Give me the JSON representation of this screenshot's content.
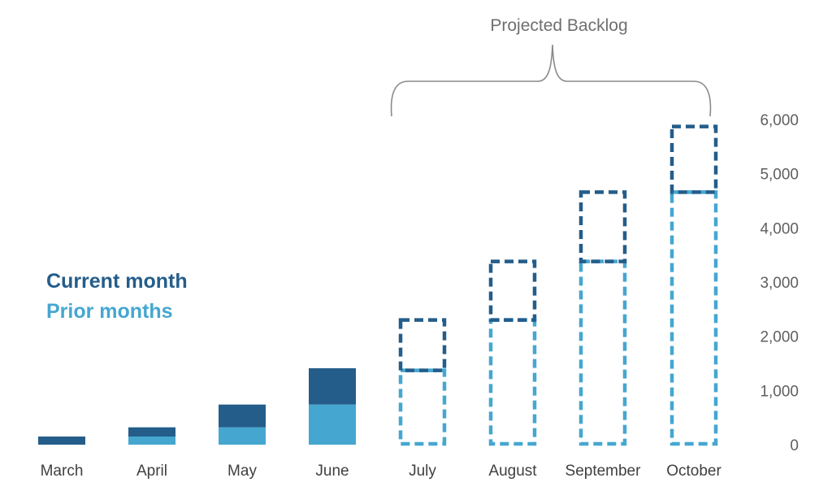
{
  "chart_data": {
    "type": "bar",
    "stacked": true,
    "categories": [
      "March",
      "April",
      "May",
      "June",
      "July",
      "August",
      "September",
      "October"
    ],
    "series": [
      {
        "name": "Prior months",
        "values": [
          0,
          150,
          320,
          740,
          1370,
          2300,
          3380,
          4660
        ]
      },
      {
        "name": "Current month",
        "values": [
          150,
          170,
          420,
          670,
          930,
          1080,
          1280,
          1210
        ]
      }
    ],
    "projected": [
      false,
      false,
      false,
      false,
      true,
      true,
      true,
      true
    ],
    "ylim": [
      0,
      6000
    ],
    "yticks": [
      0,
      1000,
      2000,
      3000,
      4000,
      5000,
      6000
    ],
    "ytick_labels": [
      "0",
      "1,000",
      "2,000",
      "3,000",
      "4,000",
      "5,000",
      "6,000"
    ],
    "y_axis_position": "right",
    "grid": false,
    "legend_placement": "left",
    "annotation": {
      "text": "Projected Backlog",
      "spans": [
        "July",
        "October"
      ]
    },
    "colors": {
      "current": "#245d8a",
      "prior": "#45a7d0",
      "text": "#5f5f5f",
      "brace": "#8a8a8a"
    }
  }
}
